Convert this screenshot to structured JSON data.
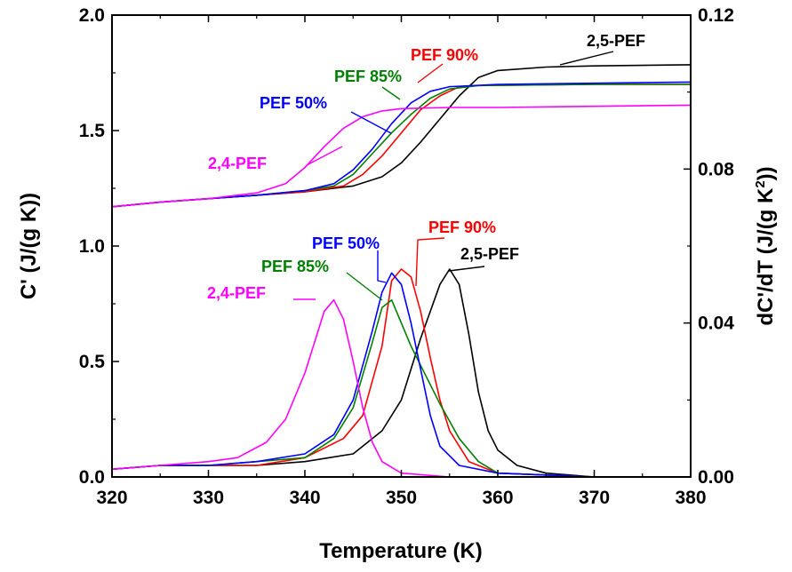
{
  "chart_data": {
    "type": "line",
    "xlabel": "Temperature (K)",
    "ylabel_left": "C' (J/(g K))",
    "ylabel_right_main": "dC'/dT (J/(g K",
    "ylabel_right_sup": "2",
    "ylabel_right_tail": "))",
    "xlim": [
      320,
      380
    ],
    "ylim_left": [
      0.0,
      2.0
    ],
    "ylim_right": [
      0.0,
      0.12
    ],
    "x_ticks": [
      "320",
      "330",
      "340",
      "350",
      "360",
      "370",
      "380"
    ],
    "y_left_ticks": [
      "0.0",
      "0.5",
      "1.0",
      "1.5",
      "2.0"
    ],
    "y_right_ticks": [
      "0.00",
      "0.04",
      "0.08",
      "0.12"
    ],
    "grid": false,
    "series": [
      {
        "name": "2,4-PEF",
        "color": "#ff00ff",
        "c_prime": [
          [
            320,
            1.17
          ],
          [
            325,
            1.19
          ],
          [
            330,
            1.205
          ],
          [
            335,
            1.23
          ],
          [
            338,
            1.27
          ],
          [
            340,
            1.34
          ],
          [
            342,
            1.43
          ],
          [
            344,
            1.51
          ],
          [
            346,
            1.56
          ],
          [
            348,
            1.585
          ],
          [
            350,
            1.595
          ],
          [
            355,
            1.6
          ],
          [
            360,
            1.6
          ],
          [
            370,
            1.605
          ],
          [
            380,
            1.61
          ]
        ],
        "derivative": [
          [
            320,
            0.002
          ],
          [
            325,
            0.003
          ],
          [
            330,
            0.004
          ],
          [
            333,
            0.005
          ],
          [
            336,
            0.009
          ],
          [
            338,
            0.015
          ],
          [
            340,
            0.027
          ],
          [
            341,
            0.035
          ],
          [
            342,
            0.043
          ],
          [
            343,
            0.046
          ],
          [
            344,
            0.041
          ],
          [
            345,
            0.03
          ],
          [
            346,
            0.018
          ],
          [
            347,
            0.009
          ],
          [
            348,
            0.004
          ],
          [
            350,
            0.001
          ],
          [
            355,
            0.0
          ],
          [
            360,
            0.0
          ],
          [
            370,
            0.0
          ],
          [
            380,
            0.0
          ]
        ]
      },
      {
        "name": "PEF 50%",
        "color": "#0000ff",
        "c_prime": [
          [
            320,
            1.17
          ],
          [
            325,
            1.19
          ],
          [
            330,
            1.205
          ],
          [
            335,
            1.22
          ],
          [
            340,
            1.24
          ],
          [
            343,
            1.27
          ],
          [
            345,
            1.33
          ],
          [
            347,
            1.42
          ],
          [
            349,
            1.53
          ],
          [
            351,
            1.62
          ],
          [
            353,
            1.67
          ],
          [
            355,
            1.69
          ],
          [
            360,
            1.7
          ],
          [
            370,
            1.705
          ],
          [
            380,
            1.71
          ]
        ],
        "derivative": [
          [
            320,
            0.002
          ],
          [
            325,
            0.003
          ],
          [
            330,
            0.003
          ],
          [
            335,
            0.004
          ],
          [
            340,
            0.006
          ],
          [
            343,
            0.011
          ],
          [
            345,
            0.02
          ],
          [
            347,
            0.038
          ],
          [
            348,
            0.048
          ],
          [
            349,
            0.053
          ],
          [
            350,
            0.05
          ],
          [
            351,
            0.04
          ],
          [
            352,
            0.028
          ],
          [
            353,
            0.016
          ],
          [
            354,
            0.008
          ],
          [
            356,
            0.003
          ],
          [
            360,
            0.001
          ],
          [
            370,
            0.0
          ],
          [
            380,
            0.0
          ]
        ]
      },
      {
        "name": "PEF 85%",
        "color": "#008000",
        "c_prime": [
          [
            320,
            1.17
          ],
          [
            325,
            1.19
          ],
          [
            330,
            1.205
          ],
          [
            335,
            1.22
          ],
          [
            340,
            1.24
          ],
          [
            343,
            1.26
          ],
          [
            345,
            1.31
          ],
          [
            347,
            1.4
          ],
          [
            349,
            1.49
          ],
          [
            351,
            1.57
          ],
          [
            353,
            1.64
          ],
          [
            355,
            1.68
          ],
          [
            358,
            1.695
          ],
          [
            370,
            1.7
          ],
          [
            380,
            1.7
          ]
        ],
        "derivative": [
          [
            320,
            0.002
          ],
          [
            325,
            0.003
          ],
          [
            330,
            0.003
          ],
          [
            335,
            0.004
          ],
          [
            340,
            0.005
          ],
          [
            343,
            0.01
          ],
          [
            345,
            0.018
          ],
          [
            347,
            0.035
          ],
          [
            348,
            0.044
          ],
          [
            349,
            0.046
          ],
          [
            350,
            0.04
          ],
          [
            351,
            0.034
          ],
          [
            352,
            0.029
          ],
          [
            354,
            0.019
          ],
          [
            356,
            0.01
          ],
          [
            358,
            0.004
          ],
          [
            360,
            0.001
          ],
          [
            370,
            0.0
          ],
          [
            380,
            0.0
          ]
        ]
      },
      {
        "name": "PEF 90%",
        "color": "#ff0000",
        "c_prime": [
          [
            320,
            1.17
          ],
          [
            325,
            1.19
          ],
          [
            330,
            1.205
          ],
          [
            335,
            1.22
          ],
          [
            340,
            1.235
          ],
          [
            344,
            1.26
          ],
          [
            346,
            1.31
          ],
          [
            348,
            1.39
          ],
          [
            350,
            1.49
          ],
          [
            352,
            1.59
          ],
          [
            354,
            1.65
          ],
          [
            356,
            1.69
          ],
          [
            358,
            1.695
          ],
          [
            370,
            1.7
          ],
          [
            380,
            1.7
          ]
        ],
        "derivative": [
          [
            320,
            0.002
          ],
          [
            325,
            0.003
          ],
          [
            330,
            0.003
          ],
          [
            335,
            0.003
          ],
          [
            340,
            0.005
          ],
          [
            344,
            0.01
          ],
          [
            346,
            0.016
          ],
          [
            348,
            0.034
          ],
          [
            349,
            0.051
          ],
          [
            350,
            0.054
          ],
          [
            351,
            0.052
          ],
          [
            352,
            0.043
          ],
          [
            353,
            0.031
          ],
          [
            354,
            0.02
          ],
          [
            355,
            0.012
          ],
          [
            357,
            0.004
          ],
          [
            360,
            0.001
          ],
          [
            370,
            0.0
          ],
          [
            380,
            0.0
          ]
        ]
      },
      {
        "name": "2,5-PEF",
        "color": "#000000",
        "c_prime": [
          [
            320,
            1.17
          ],
          [
            325,
            1.19
          ],
          [
            330,
            1.205
          ],
          [
            335,
            1.22
          ],
          [
            340,
            1.235
          ],
          [
            345,
            1.26
          ],
          [
            348,
            1.3
          ],
          [
            350,
            1.36
          ],
          [
            352,
            1.45
          ],
          [
            354,
            1.55
          ],
          [
            356,
            1.65
          ],
          [
            358,
            1.73
          ],
          [
            360,
            1.76
          ],
          [
            365,
            1.775
          ],
          [
            370,
            1.78
          ],
          [
            380,
            1.785
          ]
        ],
        "derivative": [
          [
            320,
            0.002
          ],
          [
            325,
            0.003
          ],
          [
            330,
            0.003
          ],
          [
            335,
            0.003
          ],
          [
            340,
            0.004
          ],
          [
            345,
            0.006
          ],
          [
            348,
            0.012
          ],
          [
            350,
            0.02
          ],
          [
            352,
            0.036
          ],
          [
            354,
            0.05
          ],
          [
            355,
            0.054
          ],
          [
            356,
            0.05
          ],
          [
            357,
            0.037
          ],
          [
            358,
            0.022
          ],
          [
            359,
            0.012
          ],
          [
            360,
            0.007
          ],
          [
            362,
            0.003
          ],
          [
            365,
            0.001
          ],
          [
            370,
            0.0
          ],
          [
            380,
            0.0
          ]
        ]
      }
    ],
    "annotations": [
      {
        "text": "2,5-PEF",
        "series": "2,5-PEF",
        "color": "#000000"
      },
      {
        "text": "PEF 90%",
        "series": "PEF 90%",
        "color": "#ff0000"
      },
      {
        "text": "PEF 85%",
        "series": "PEF 85%",
        "color": "#008000"
      },
      {
        "text": "PEF 50%",
        "series": "PEF 50%",
        "color": "#0000ff"
      },
      {
        "text": "2,4-PEF",
        "series": "2,4-PEF",
        "color": "#ff00ff"
      },
      {
        "text": "PEF 90%",
        "series": "PEF 90%",
        "color": "#ff0000"
      },
      {
        "text": "PEF 50%",
        "series": "PEF 50%",
        "color": "#0000ff"
      },
      {
        "text": "2,5-PEF",
        "series": "2,5-PEF",
        "color": "#000000"
      },
      {
        "text": "PEF 85%",
        "series": "PEF 85%",
        "color": "#008000"
      },
      {
        "text": "2,4-PEF",
        "series": "2,4-PEF",
        "color": "#ff00ff"
      }
    ]
  }
}
